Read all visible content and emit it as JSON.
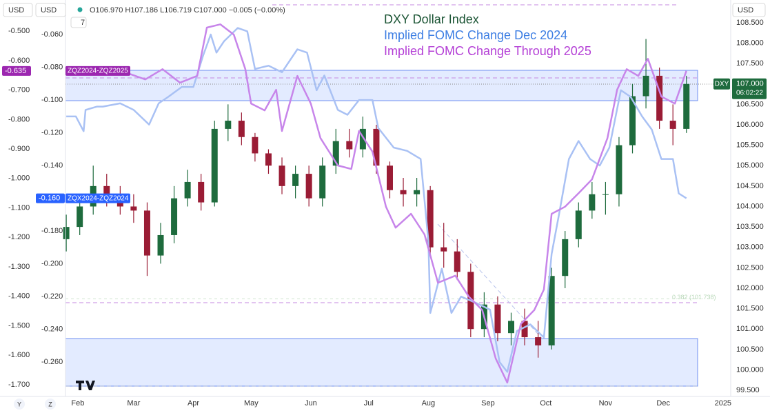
{
  "toolbar": {
    "symbol_currency": "USD",
    "currency": "USD",
    "ohlc": "O106.970 H107.186 L106.719 C107.000 −0.005 (−0.00%)",
    "count": "7",
    "scale_currency": "USD",
    "bottom_buttons": [
      "Y",
      "Z"
    ]
  },
  "chart_data": {
    "type": "candlestick",
    "xlim": [
      24.6,
      370
    ],
    "xticks": [
      {
        "value": 31,
        "label": "Feb"
      },
      {
        "value": 60,
        "label": "Mar"
      },
      {
        "value": 91,
        "label": "Apr"
      },
      {
        "value": 121,
        "label": "May"
      },
      {
        "value": 152,
        "label": "Jun"
      },
      {
        "value": 182,
        "label": "Jul"
      },
      {
        "value": 213,
        "label": "Aug"
      },
      {
        "value": 244,
        "label": "Sep"
      },
      {
        "value": 274,
        "label": "Oct"
      },
      {
        "value": 305,
        "label": "Nov"
      },
      {
        "value": 335,
        "label": "Dec"
      },
      {
        "value": 366,
        "label": "2025"
      }
    ],
    "ylim": [
      99.35,
      108.97
    ],
    "yticks": [
      {
        "value": 99.5,
        "label": "99.500"
      },
      {
        "value": 100,
        "label": "100.000"
      },
      {
        "value": 100.5,
        "label": "100.500"
      },
      {
        "value": 101,
        "label": "101.000"
      },
      {
        "value": 101.5,
        "label": "101.500"
      },
      {
        "value": 102,
        "label": "102.000"
      },
      {
        "value": 102.5,
        "label": "102.500"
      },
      {
        "value": 103,
        "label": "103.000"
      },
      {
        "value": 103.5,
        "label": "103.500"
      },
      {
        "value": 104,
        "label": "104.000"
      },
      {
        "value": 104.5,
        "label": "104.500"
      },
      {
        "value": 105,
        "label": "105.000"
      },
      {
        "value": 105.5,
        "label": "105.500"
      },
      {
        "value": 106,
        "label": "106.000"
      },
      {
        "value": 106.5,
        "label": "106.500"
      },
      {
        "value": 107,
        "label": "107.000"
      },
      {
        "value": 107.5,
        "label": "107.500"
      },
      {
        "value": 108,
        "label": "108.000"
      },
      {
        "value": 108.5,
        "label": "108.500"
      }
    ],
    "y2lim": [
      -0.281,
      -0.041
    ],
    "y2ticks": [
      {
        "value": -0.06,
        "label": "-0.060"
      },
      {
        "value": -0.08,
        "label": "-0.080"
      },
      {
        "value": -0.1,
        "label": "-0.100"
      },
      {
        "value": -0.12,
        "label": "-0.120"
      },
      {
        "value": -0.14,
        "label": "-0.140"
      },
      {
        "value": -0.16,
        "label": "-0.160"
      },
      {
        "value": -0.18,
        "label": "-0.180"
      },
      {
        "value": -0.2,
        "label": "-0.200"
      },
      {
        "value": -0.22,
        "label": "-0.220"
      },
      {
        "value": -0.24,
        "label": "-0.240"
      },
      {
        "value": -0.26,
        "label": "-0.260"
      }
    ],
    "y3lim": [
      -1.74,
      -0.406
    ],
    "y3ticks": [
      {
        "value": -0.5,
        "label": "-0.500"
      },
      {
        "value": -0.6,
        "label": "-0.600"
      },
      {
        "value": -0.7,
        "label": "-0.700"
      },
      {
        "value": -0.8,
        "label": "-0.800"
      },
      {
        "value": -0.9,
        "label": "-0.900"
      },
      {
        "value": -1,
        "label": "-1.000"
      },
      {
        "value": -1.1,
        "label": "-1.100"
      },
      {
        "value": -1.2,
        "label": "-1.200"
      },
      {
        "value": -1.3,
        "label": "-1.300"
      },
      {
        "value": -1.4,
        "label": "-1.400"
      },
      {
        "value": -1.5,
        "label": "-1.500"
      },
      {
        "value": -1.6,
        "label": "-1.600"
      },
      {
        "value": -1.7,
        "label": "-1.700"
      }
    ],
    "annotations": [
      {
        "text": "0.382 (101.738)",
        "level": 101.738
      }
    ],
    "series": [
      {
        "name": "DXY Dollar Index",
        "type": "candlestick",
        "axis": "y",
        "legend_color": "#1c5535",
        "up_color": "#1e6b3d",
        "down_color": "#9a1c35",
        "symbol": "DXY",
        "end_label": "107.000",
        "countdown": "06:02:22",
        "x": [
          25,
          32,
          39,
          46,
          53,
          60,
          67,
          74,
          81,
          88,
          95,
          102,
          109,
          116,
          123,
          130,
          137,
          144,
          151,
          158,
          165,
          172,
          179,
          186,
          193,
          200,
          207,
          214,
          221,
          228,
          235,
          242,
          249,
          256,
          263,
          270,
          277,
          284,
          291,
          298,
          305,
          312,
          319,
          326,
          333,
          340,
          347
        ],
        "open": [
          103.2,
          103.5,
          104.0,
          104.5,
          104.3,
          104.0,
          103.9,
          102.8,
          103.3,
          104.2,
          104.6,
          104.1,
          105.9,
          106.1,
          105.7,
          105.3,
          105.0,
          104.5,
          104.8,
          104.2,
          105.0,
          105.6,
          105.4,
          105.9,
          105.0,
          104.4,
          104.3,
          104.4,
          103.0,
          102.9,
          102.4,
          101.0,
          101.6,
          100.9,
          101.2,
          100.8,
          100.6,
          102.3,
          103.2,
          103.9,
          104.3,
          104.3,
          105.5,
          106.7,
          107.2,
          106.1,
          105.9
        ],
        "high": [
          103.8,
          104.3,
          105.0,
          104.8,
          104.5,
          104.3,
          104.1,
          103.6,
          104.5,
          104.9,
          104.8,
          106.1,
          106.5,
          106.3,
          105.8,
          105.4,
          105.2,
          105.0,
          105.0,
          105.2,
          105.9,
          105.9,
          106.2,
          106.0,
          105.1,
          104.7,
          104.7,
          104.5,
          103.6,
          103.2,
          102.6,
          101.9,
          101.8,
          101.4,
          101.5,
          101.2,
          102.5,
          103.4,
          104.1,
          104.6,
          104.6,
          105.7,
          107.0,
          108.1,
          107.4,
          106.5,
          107.2
        ],
        "low": [
          102.9,
          103.3,
          103.8,
          104.0,
          103.8,
          103.6,
          102.3,
          102.6,
          103.1,
          104.0,
          103.9,
          104.0,
          105.6,
          105.5,
          105.1,
          104.8,
          104.3,
          104.2,
          104.0,
          104.0,
          104.8,
          105.2,
          105.2,
          104.8,
          104.2,
          104.0,
          104.0,
          102.8,
          102.5,
          102.2,
          100.8,
          100.8,
          100.7,
          100.6,
          100.6,
          100.3,
          100.5,
          102.0,
          103.0,
          103.7,
          103.8,
          104.0,
          105.3,
          106.4,
          105.9,
          105.5,
          105.8
        ],
        "close": [
          103.5,
          104.0,
          104.5,
          104.3,
          104.0,
          103.9,
          102.8,
          103.3,
          104.2,
          104.6,
          104.1,
          105.9,
          106.1,
          105.7,
          105.3,
          105.0,
          104.5,
          104.8,
          104.2,
          105.0,
          105.6,
          105.4,
          105.9,
          105.0,
          104.4,
          104.3,
          104.4,
          103.0,
          102.9,
          102.4,
          101.0,
          101.6,
          100.9,
          101.2,
          100.8,
          100.6,
          102.3,
          103.2,
          103.9,
          104.3,
          104.3,
          105.5,
          106.7,
          107.2,
          106.1,
          105.9,
          107.0
        ]
      },
      {
        "name": "Implied FOMC Change Dec 2024",
        "type": "line",
        "axis": "y2",
        "color": "#a9c1f4",
        "legend_color": "#3d7ee3",
        "tag_color": "#2962ff",
        "symbol": "ZQX2024-ZQZ2024",
        "end_label": "-0.160",
        "x": [
          25,
          30,
          34,
          35,
          41,
          44,
          53,
          60,
          68,
          73,
          78,
          85,
          91,
          96,
          100,
          103,
          107,
          114,
          119,
          123,
          130,
          137,
          145,
          150,
          155,
          159,
          166,
          171,
          177,
          184,
          187,
          195,
          202,
          209,
          213,
          214,
          220,
          225,
          230,
          238,
          245,
          250,
          254,
          259,
          266,
          273,
          277,
          281,
          286,
          291,
          297,
          302,
          307,
          313,
          318,
          324,
          329,
          334,
          340,
          343,
          347
        ],
        "values": [
          -0.11,
          -0.11,
          -0.119,
          -0.106,
          -0.104,
          -0.104,
          -0.102,
          -0.106,
          -0.115,
          -0.102,
          -0.098,
          -0.092,
          -0.092,
          -0.073,
          -0.06,
          -0.071,
          -0.064,
          -0.056,
          -0.058,
          -0.081,
          -0.079,
          -0.083,
          -0.069,
          -0.071,
          -0.094,
          -0.085,
          -0.106,
          -0.109,
          -0.1,
          -0.1,
          -0.117,
          -0.129,
          -0.131,
          -0.136,
          -0.186,
          -0.23,
          -0.203,
          -0.23,
          -0.22,
          -0.224,
          -0.228,
          -0.26,
          -0.266,
          -0.241,
          -0.237,
          -0.245,
          -0.194,
          -0.169,
          -0.136,
          -0.125,
          -0.136,
          -0.14,
          -0.129,
          -0.094,
          -0.098,
          -0.11,
          -0.118,
          -0.136,
          -0.136,
          -0.157,
          -0.16
        ]
      },
      {
        "name": "Implied FOMC Change Through 2025",
        "type": "line",
        "axis": "y3",
        "color": "#c785ea",
        "legend_color": "#b43fd6",
        "tag_color": "#9c27b0",
        "symbol": "ZQZ2024-ZQZ2025",
        "end_label": "-0.635",
        "x": [
          25,
          37,
          51,
          66,
          75,
          84,
          93,
          98,
          105,
          112,
          118,
          121,
          128,
          134,
          137,
          145,
          152,
          157,
          166,
          173,
          177,
          184,
          191,
          196,
          204,
          211,
          218,
          227,
          234,
          241,
          248,
          254,
          261,
          268,
          273,
          277,
          284,
          291,
          298,
          306,
          311,
          316,
          322,
          327,
          334,
          341,
          347
        ],
        "values": [
          -0.629,
          -0.633,
          -0.629,
          -0.664,
          -0.629,
          -0.675,
          -0.652,
          -0.488,
          -0.477,
          -0.512,
          -0.629,
          -0.746,
          -0.769,
          -0.699,
          -0.839,
          -0.652,
          -0.746,
          -0.863,
          -0.956,
          -0.968,
          -0.839,
          -0.909,
          -1.096,
          -1.167,
          -1.12,
          -1.19,
          -1.354,
          -1.33,
          -1.401,
          -1.447,
          -1.611,
          -1.693,
          -1.494,
          -1.447,
          -1.377,
          -1.12,
          -1.096,
          -1.05,
          -1.003,
          -0.863,
          -0.699,
          -0.629,
          -0.652,
          -0.594,
          -0.722,
          -0.746,
          -0.635
        ]
      }
    ]
  }
}
